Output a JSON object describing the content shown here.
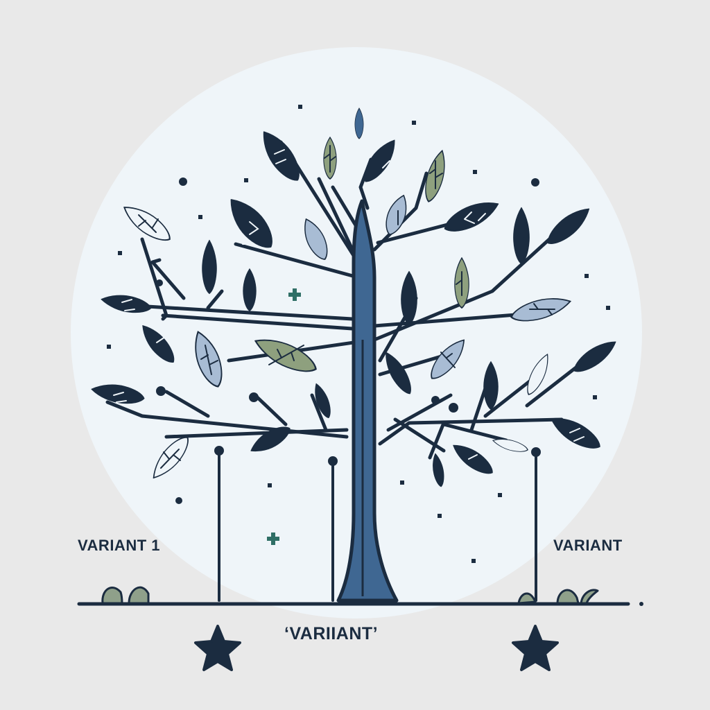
{
  "labels": {
    "left": "VARIANT 1",
    "right": "VARIANT",
    "bottom": "‘VARIIANT’"
  },
  "icons": [
    "leaf-icon",
    "star-icon",
    "grass-tuft-icon"
  ],
  "colors": {
    "background": "#e9e9e9",
    "circle": "#eff5f9",
    "dark_navy": "#1b2c40",
    "trunk_blue": "#3f6792",
    "leaf_pale_blue": "#a8bcd4",
    "leaf_green": "#8ea07e",
    "grass_green": "#8fa08a"
  }
}
